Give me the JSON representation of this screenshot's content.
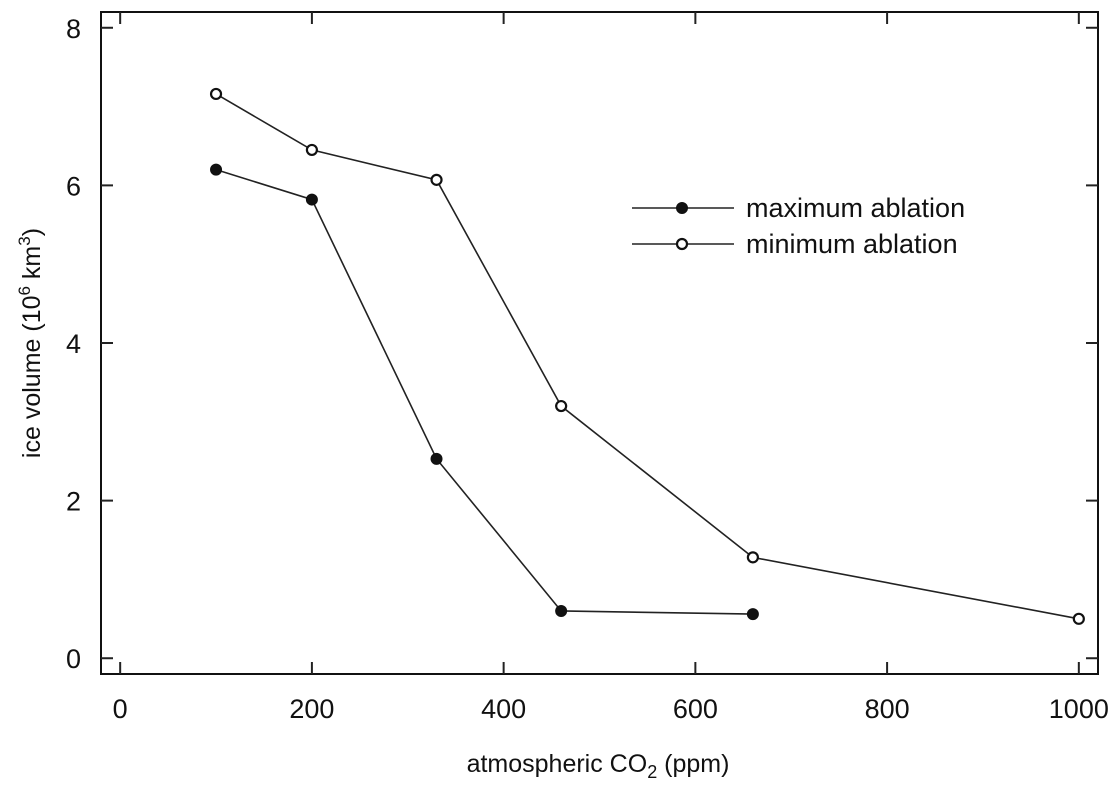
{
  "chart_data": {
    "type": "line",
    "title": "",
    "xlabel": "atmospheric CO",
    "xlabel_sub": "2",
    "xlabel_suffix": " (ppm)",
    "ylabel": "ice volume (10",
    "ylabel_sup1": "6",
    "ylabel_mid": " km",
    "ylabel_sup2": "3",
    "ylabel_suffix": ")",
    "xlim": [
      -20,
      1020
    ],
    "ylim": [
      -0.2,
      8.2
    ],
    "xticks": [
      0,
      200,
      400,
      600,
      800,
      1000
    ],
    "xtick_labels": [
      "0",
      "200",
      "400",
      "600",
      "800",
      "1000"
    ],
    "yticks": [
      0,
      2,
      4,
      6,
      8
    ],
    "ytick_labels": [
      "0",
      "2",
      "4",
      "6",
      "8"
    ],
    "grid": false,
    "legend_position": "top-right",
    "series": [
      {
        "name": "maximum ablation",
        "marker": "filled-circle",
        "x": [
          100,
          200,
          330,
          460,
          660
        ],
        "y": [
          6.2,
          5.82,
          2.53,
          0.6,
          0.56
        ]
      },
      {
        "name": "minimum ablation",
        "marker": "open-circle",
        "x": [
          100,
          200,
          330,
          460,
          660,
          1000
        ],
        "y": [
          7.16,
          6.45,
          6.07,
          3.2,
          1.28,
          0.5
        ]
      }
    ],
    "colors": {
      "line": "#222222",
      "marker": "#111111",
      "background": "#ffffff"
    }
  }
}
